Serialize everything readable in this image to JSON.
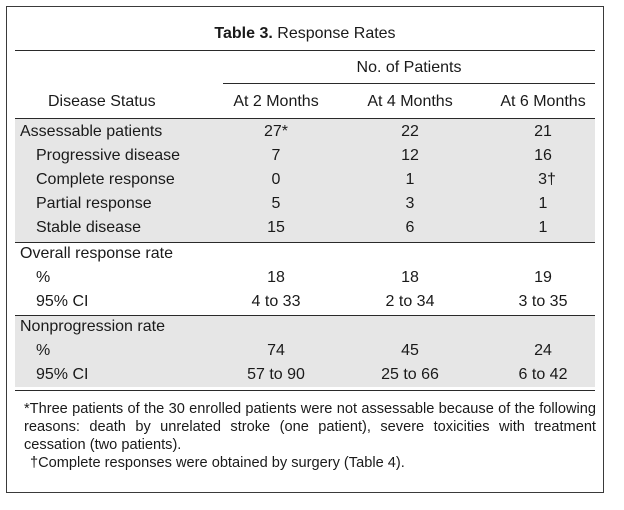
{
  "table": {
    "title_bold": "Table 3.",
    "title_rest": "Response Rates",
    "spanner": "No. of Patients",
    "stub_header": "Disease Status",
    "columns": [
      "At 2 Months",
      "At 4 Months",
      "At 6 Months"
    ],
    "sections": [
      {
        "label": "Assessable patients",
        "values": [
          "27*",
          "22",
          "21"
        ],
        "rows": [
          {
            "label": "Progressive disease",
            "values": [
              "7",
              "12",
              "16"
            ]
          },
          {
            "label": "Complete response",
            "values": [
              "0",
              "1",
              "3†"
            ]
          },
          {
            "label": "Partial response",
            "values": [
              "5",
              "3",
              "1"
            ]
          },
          {
            "label": "Stable disease",
            "values": [
              "15",
              "6",
              "1"
            ]
          }
        ]
      },
      {
        "label": "Overall response rate",
        "values": [
          "",
          "",
          ""
        ],
        "rows": [
          {
            "label": "%",
            "values": [
              "18",
              "18",
              "19"
            ]
          },
          {
            "label": "95% CI",
            "values": [
              "4 to 33",
              "2 to 34",
              "3 to 35"
            ]
          }
        ]
      },
      {
        "label": "Nonprogression rate",
        "values": [
          "",
          "",
          ""
        ],
        "rows": [
          {
            "label": "%",
            "values": [
              "74",
              "45",
              "24"
            ]
          },
          {
            "label": "95% CI",
            "values": [
              "57 to 90",
              "25 to 66",
              "6 to 42"
            ]
          }
        ]
      }
    ],
    "footnotes": [
      "*Three patients of the 30 enrolled patients were not assessable because of the following reasons: death by unrelated stroke (one patient), severe toxicities with treatment cessation (two patients).",
      "†Complete responses were obtained by surgery (Table 4)."
    ]
  }
}
